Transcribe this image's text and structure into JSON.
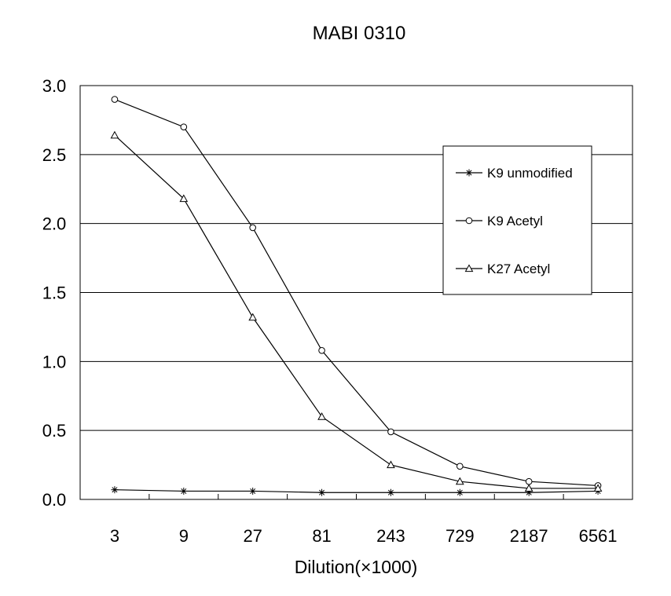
{
  "chart_data": {
    "type": "line",
    "title": "MABI 0310",
    "xlabel": "Dilution(×1000)",
    "ylabel": "",
    "categories": [
      "3",
      "9",
      "27",
      "81",
      "243",
      "729",
      "2187",
      "6561"
    ],
    "ylim": [
      0,
      3.0
    ],
    "yticks": [
      "0.0",
      "0.5",
      "1.0",
      "1.5",
      "2.0",
      "2.5",
      "3.0"
    ],
    "grid": true,
    "legend_position": "right",
    "series": [
      {
        "name": "K9 unmodified",
        "marker": "asterisk",
        "values": [
          0.07,
          0.06,
          0.06,
          0.05,
          0.05,
          0.05,
          0.05,
          0.06
        ]
      },
      {
        "name": "K9 Acetyl",
        "marker": "circle",
        "values": [
          2.9,
          2.7,
          1.97,
          1.08,
          0.49,
          0.24,
          0.13,
          0.1
        ]
      },
      {
        "name": "K27 Acetyl",
        "marker": "triangle",
        "values": [
          2.64,
          2.18,
          1.32,
          0.6,
          0.25,
          0.13,
          0.08,
          0.08
        ]
      }
    ]
  }
}
